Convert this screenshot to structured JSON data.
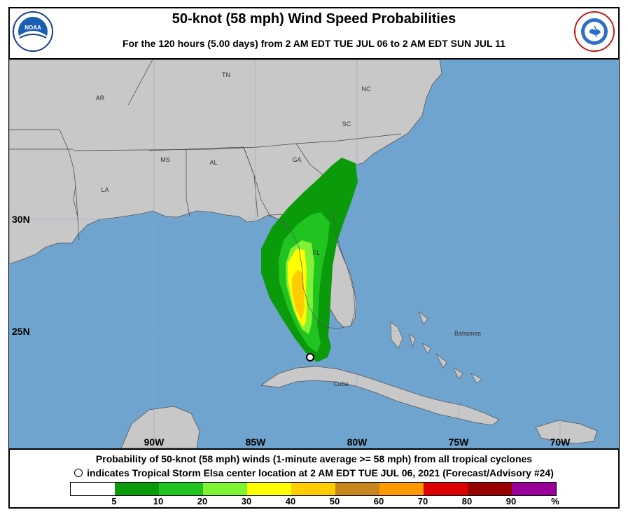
{
  "title": "50-knot (58 mph) Wind Speed Probabilities",
  "subtitle": "For the 120 hours (5.00 days) from 2 AM EDT TUE JUL 06 to 2 AM EDT SUN JUL 11",
  "logos": {
    "left": "NOAA",
    "right": "NATIONAL WEATHER SERVICE"
  },
  "map": {
    "ocean_color": "#6fa4cf",
    "land_color": "#c8c8c8",
    "state_labels": [
      "AR",
      "TN",
      "NC",
      "SC",
      "MS",
      "AL",
      "GA",
      "LA",
      "FL"
    ],
    "region_labels": [
      "Bahamas",
      "Cuba"
    ],
    "lat_labels": [
      "30N",
      "25N"
    ],
    "lon_labels": [
      "90W",
      "85W",
      "80W",
      "75W",
      "70W"
    ],
    "storm_marker": "center location"
  },
  "caption": {
    "line1": "Probability of 50-knot (58 mph) winds (1-minute average >= 58 mph) from all tropical cyclones",
    "line2": "indicates Tropical Storm Elsa center location at 2 AM EDT TUE JUL 06, 2021 (Forecast/Advisory #24)"
  },
  "legend": {
    "colors": [
      "#ffffff",
      "#0a9a0a",
      "#21c321",
      "#7ff233",
      "#ffff00",
      "#ffcc00",
      "#c8871e",
      "#ff9900",
      "#dd0000",
      "#990000",
      "#990099"
    ],
    "ticks": [
      "5",
      "10",
      "20",
      "30",
      "40",
      "50",
      "60",
      "70",
      "80",
      "90",
      "%"
    ]
  }
}
